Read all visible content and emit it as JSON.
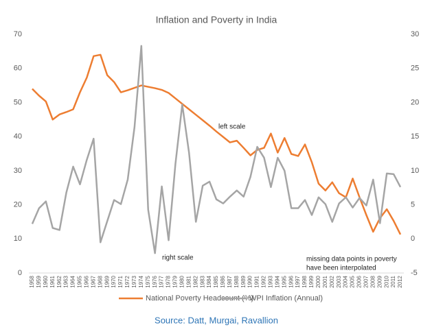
{
  "chart_data": {
    "type": "line",
    "title": "Inflation and Poverty in India",
    "categories": [
      "1958",
      "1959",
      "1960",
      "1961",
      "1962",
      "1963",
      "1964",
      "1965",
      "1966",
      "1967",
      "1968",
      "1969",
      "1970",
      "1971",
      "1972",
      "1973",
      "1974",
      "1975",
      "1976",
      "1977",
      "1978",
      "1979",
      "1980",
      "1981",
      "1982",
      "1983",
      "1984",
      "1985",
      "1986",
      "1987",
      "1988",
      "1989",
      "1990",
      "1991",
      "1992",
      "1993",
      "1994",
      "1995",
      "1996",
      "1997",
      "1998",
      "1999",
      "2000",
      "2001",
      "2002",
      "2003",
      "2004",
      "2005",
      "2006",
      "2007",
      "2008",
      "2009",
      "2010",
      "2011",
      "2012"
    ],
    "series": [
      {
        "name": "National Poverty Headcount (%)",
        "color": "#ed7d31",
        "values": [
          54,
          52,
          50.3,
          45,
          46.5,
          47.2,
          48,
          53,
          57.3,
          63.6,
          64,
          58,
          56,
          53,
          53.6,
          54.3,
          55,
          54.6,
          54.2,
          53.7,
          52.8,
          51.2,
          49.6,
          48,
          46.4,
          44.8,
          43.2,
          41.5,
          39.9,
          38.3,
          38.8,
          36.7,
          34.5,
          36.1,
          36.7,
          40.9,
          35.3,
          39.6,
          34.9,
          34.3,
          37.7,
          32.5,
          26.2,
          24.2,
          26.6,
          23.4,
          22.2,
          27.7,
          22.2,
          17,
          12.1,
          16.1,
          18.7,
          15.3,
          11.3
        ]
      },
      {
        "name": "WPI Inflation (Annual)",
        "color": "#a5a5a5",
        "axis": "y2",
        "values": [
          2.2,
          4.5,
          5.5,
          1.6,
          1.3,
          6.8,
          10.6,
          8,
          11.6,
          14.7,
          -0.5,
          2.6,
          5.7,
          5.1,
          8.7,
          16.4,
          28.3,
          4.3,
          -2.1,
          7.7,
          -0.2,
          11,
          19.7,
          12.6,
          2.5,
          7.8,
          8.4,
          5.8,
          5.2,
          6.2,
          7.1,
          6.2,
          9.1,
          13.5,
          11.9,
          7.6,
          11.9,
          10,
          4.5,
          4.5,
          5.7,
          3.5,
          6.1,
          5.1,
          2.5,
          5.2,
          6.1,
          4.6,
          6,
          4.9,
          8.7,
          2.3,
          9.6,
          9.5,
          7.6
        ]
      }
    ],
    "ylim": [
      0,
      70
    ],
    "yticks": [
      0,
      10,
      20,
      30,
      40,
      50,
      60,
      70
    ],
    "y2lim": [
      -5,
      30
    ],
    "y2ticks": [
      -5,
      0,
      5,
      10,
      15,
      20,
      25,
      30
    ],
    "grid": false,
    "legend": "bottom",
    "annotations": [
      "left scale",
      "right scale",
      "missing data points in poverty",
      "have been interpolated"
    ]
  },
  "source": "Source: Datt, Murgai, Ravallion"
}
